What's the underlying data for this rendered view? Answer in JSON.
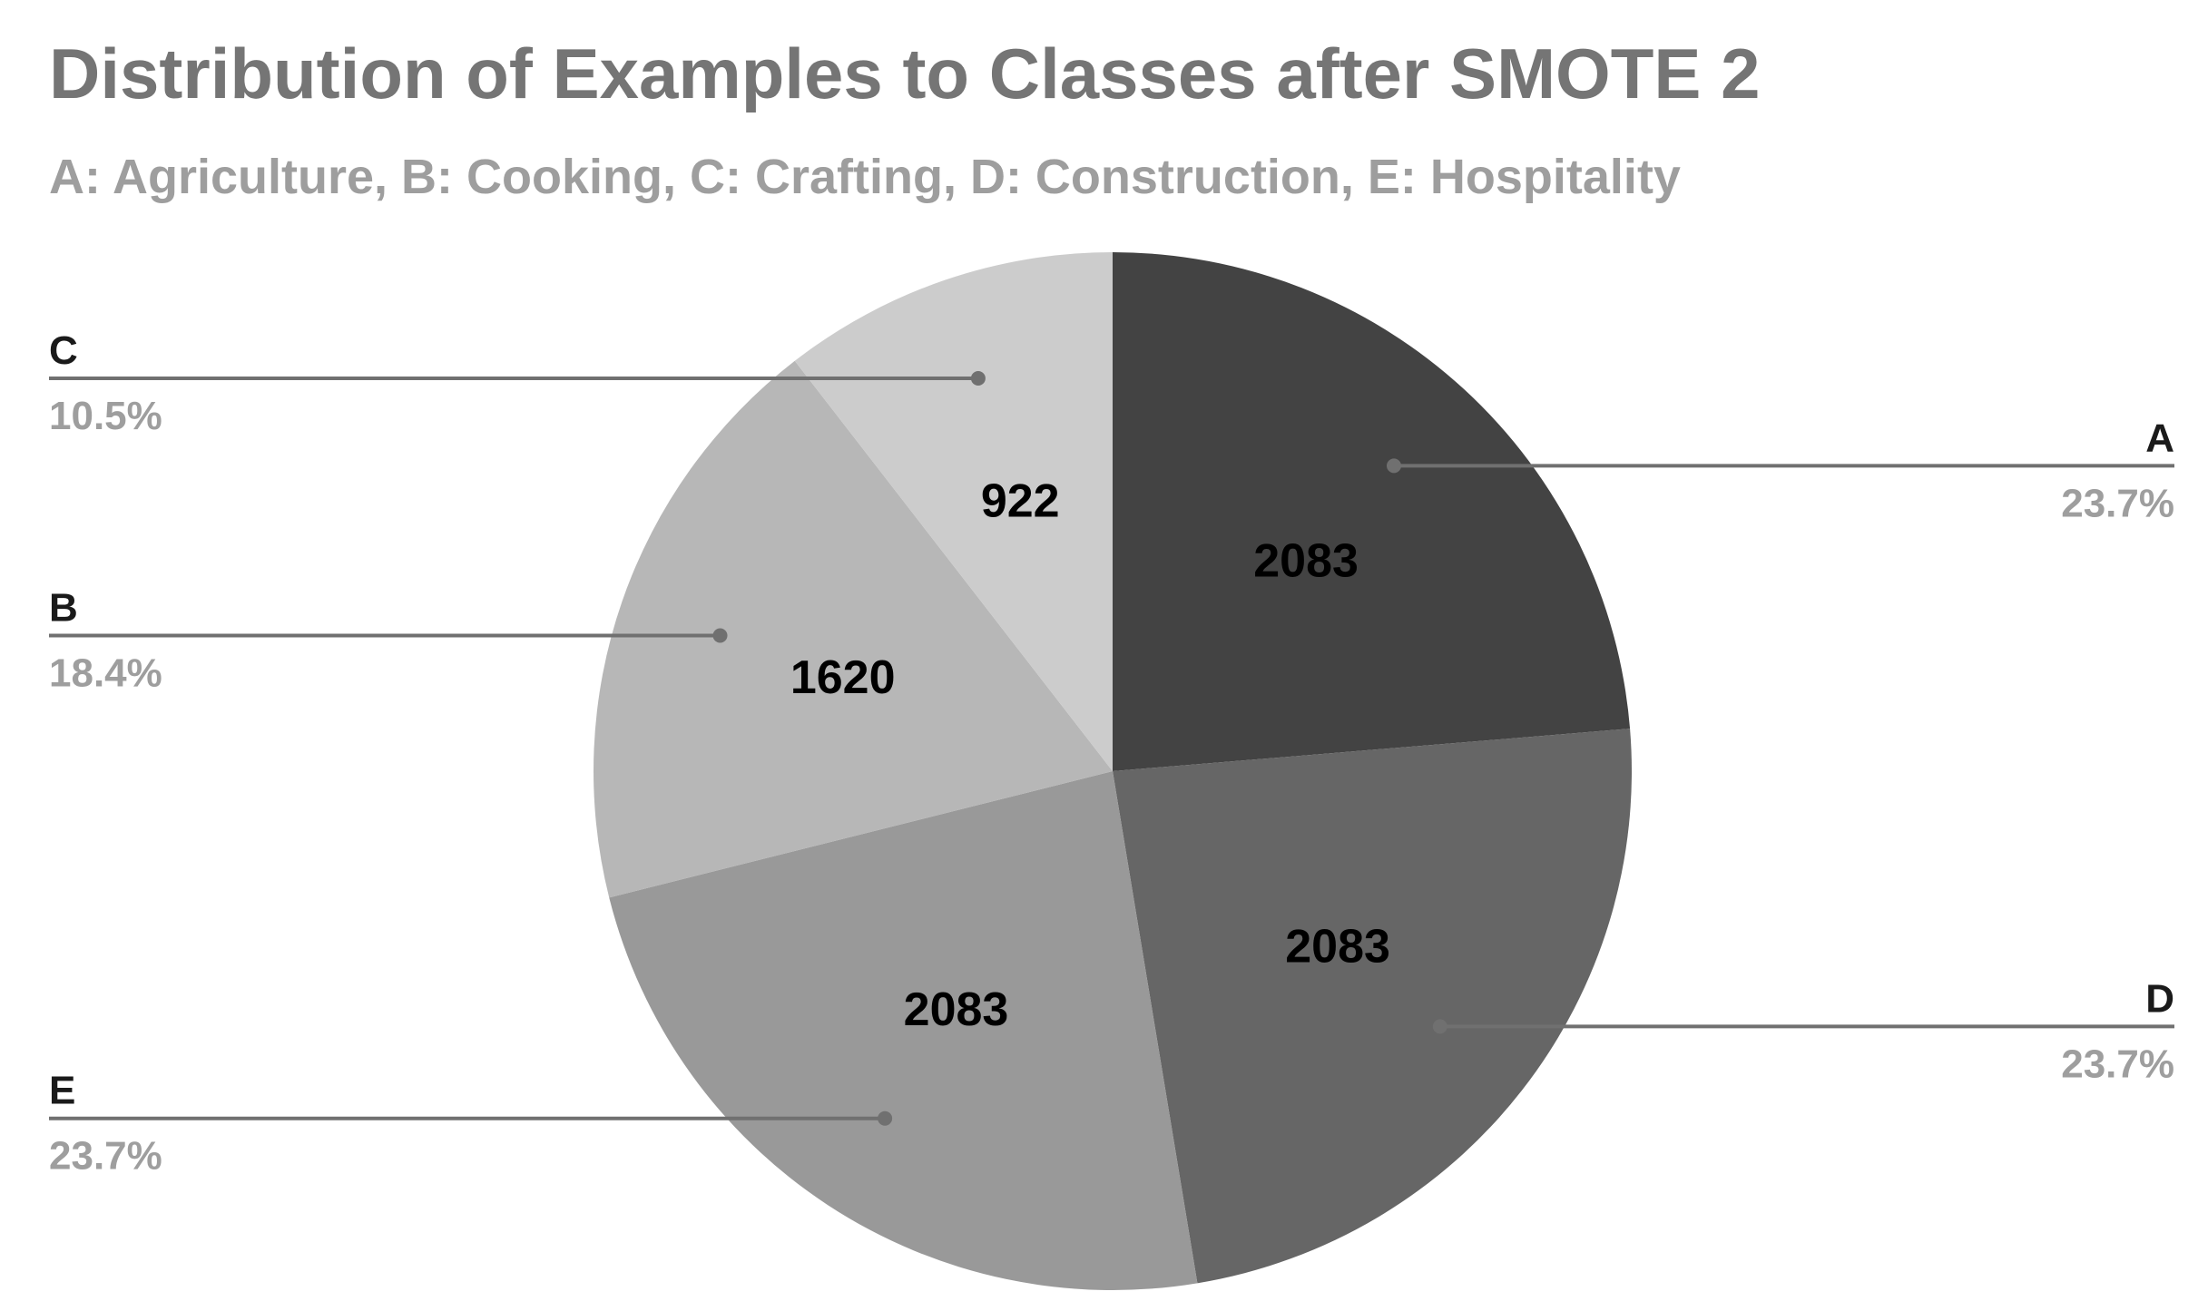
{
  "title": "Distribution of Examples to Classes after SMOTE 2",
  "subtitle": "A: Agriculture, B: Cooking, C: Crafting, D: Construction, E: Hospitality",
  "chart_data": {
    "type": "pie",
    "slices": [
      {
        "label": "A",
        "value": 2083,
        "percent": "23.7%",
        "color": "#434343"
      },
      {
        "label": "D",
        "value": 2083,
        "percent": "23.7%",
        "color": "#666666"
      },
      {
        "label": "E",
        "value": 2083,
        "percent": "23.7%",
        "color": "#999999"
      },
      {
        "label": "B",
        "value": 1620,
        "percent": "18.4%",
        "color": "#b7b7b7"
      },
      {
        "label": "C",
        "value": 922,
        "percent": "10.5%",
        "color": "#cccccc"
      }
    ],
    "legend": "callout labels with leader lines",
    "colors": {
      "leader_line": "#707070",
      "percent_text": "#9e9e9e",
      "title_text": "#757575"
    }
  }
}
